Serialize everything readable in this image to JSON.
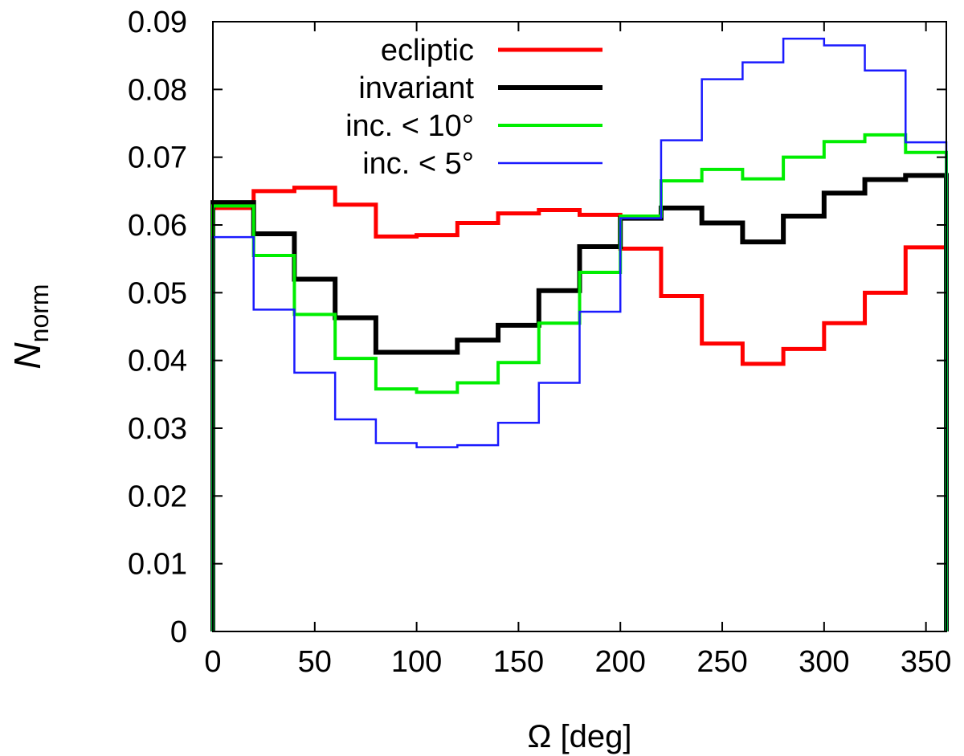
{
  "chart_data": {
    "type": "histogram-step",
    "title": "",
    "xlabel": "Ω [deg]",
    "ylabel": {
      "main": "N",
      "subscript": "norm"
    },
    "xlim": [
      0,
      360
    ],
    "ylim": [
      0,
      0.09
    ],
    "xticks": [
      0,
      50,
      100,
      150,
      200,
      250,
      300,
      350
    ],
    "yticks": [
      0,
      0.01,
      0.02,
      0.03,
      0.04,
      0.05,
      0.06,
      0.07,
      0.08,
      0.09
    ],
    "xtick_labels": [
      "0",
      "50",
      "100",
      "150",
      "200",
      "250",
      "300",
      "350"
    ],
    "ytick_labels": [
      "0",
      "0.01",
      "0.02",
      "0.03",
      "0.04",
      "0.05",
      "0.06",
      "0.07",
      "0.08",
      "0.09"
    ],
    "grid": false,
    "legend_position": "top-center",
    "bin_edges": [
      0,
      20,
      40,
      60,
      80,
      100,
      120,
      140,
      160,
      180,
      200,
      220,
      240,
      260,
      280,
      300,
      320,
      340,
      360
    ],
    "series": [
      {
        "name": "ecliptic",
        "color": "#ff0000",
        "stroke": "thick",
        "values": [
          0.0625,
          0.065,
          0.0655,
          0.063,
          0.0583,
          0.0585,
          0.0603,
          0.0617,
          0.0622,
          0.0615,
          0.0565,
          0.0495,
          0.0425,
          0.0395,
          0.0417,
          0.0455,
          0.05,
          0.0567
        ]
      },
      {
        "name": "invariant",
        "color": "#000000",
        "stroke": "thicker",
        "values": [
          0.0633,
          0.0587,
          0.052,
          0.0463,
          0.0412,
          0.0412,
          0.043,
          0.0452,
          0.0503,
          0.0568,
          0.061,
          0.0625,
          0.0603,
          0.0575,
          0.0613,
          0.0647,
          0.0667,
          0.0673
        ]
      },
      {
        "name": "inc. < 10°",
        "color": "#00ee00",
        "stroke": "medium",
        "values": [
          0.0628,
          0.0555,
          0.0468,
          0.0403,
          0.0358,
          0.0353,
          0.0367,
          0.0397,
          0.0455,
          0.053,
          0.0613,
          0.0665,
          0.0682,
          0.0668,
          0.07,
          0.0723,
          0.0733,
          0.0707
        ]
      },
      {
        "name": "inc. < 5°",
        "color": "#1a1aff",
        "stroke": "thin",
        "values": [
          0.0582,
          0.0475,
          0.0382,
          0.0313,
          0.0278,
          0.0272,
          0.0275,
          0.0308,
          0.0367,
          0.0472,
          0.061,
          0.0725,
          0.0815,
          0.084,
          0.0875,
          0.0865,
          0.0828,
          0.0722
        ]
      }
    ]
  }
}
